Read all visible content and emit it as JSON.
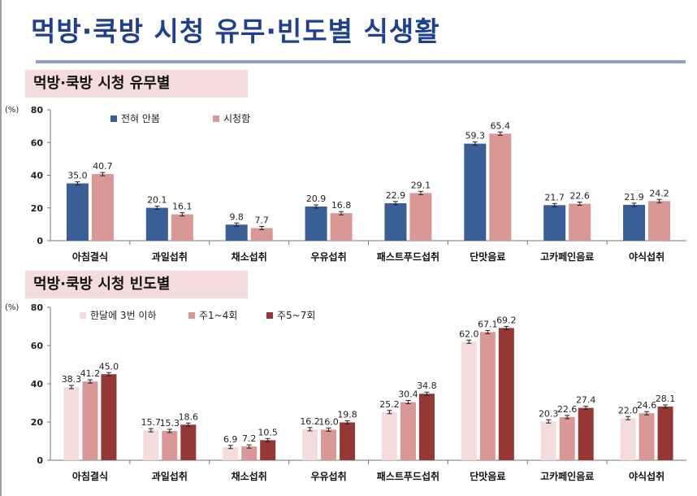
{
  "page": {
    "title": "먹방·쿡방 시청 유무·빈도별 식생활",
    "sections": [
      "먹방·쿡방 시청 유무별",
      "먹방·쿡방 시청 빈도별"
    ]
  },
  "chart_data": [
    {
      "type": "bar",
      "title": "먹방·쿡방 시청 유무별",
      "unit": "(%)",
      "ylim": [
        0,
        80
      ],
      "yticks": [
        0,
        20,
        40,
        60,
        80
      ],
      "grid": false,
      "legend": "top-left",
      "categories": [
        "아침결식",
        "과일섭취",
        "채소섭취",
        "우유섭취",
        "패스트푸드섭취",
        "단맛음료",
        "고카페인음료",
        "야식섭취"
      ],
      "series": [
        {
          "name": "전혀 안봄",
          "color": "#3a5f96",
          "values": [
            35.0,
            20.1,
            9.8,
            20.9,
            22.9,
            59.3,
            21.7,
            21.9
          ]
        },
        {
          "name": "시청함",
          "color": "#d99795",
          "values": [
            40.7,
            16.1,
            7.7,
            16.8,
            29.1,
            65.4,
            22.6,
            24.2
          ]
        }
      ],
      "error_bars": true
    },
    {
      "type": "bar",
      "title": "먹방·쿡방 시청 빈도별",
      "unit": "(%)",
      "ylim": [
        0,
        80
      ],
      "yticks": [
        0,
        20,
        40,
        60,
        80
      ],
      "grid": false,
      "legend": "top-left",
      "categories": [
        "아침결식",
        "과일섭취",
        "채소섭취",
        "우유섭취",
        "패스트푸드섭취",
        "단맛음료",
        "고카페인음료",
        "야식섭취"
      ],
      "series": [
        {
          "name": "한달에 3번 이하",
          "color": "#f3dcdb",
          "values": [
            38.3,
            15.7,
            6.9,
            16.2,
            25.2,
            62.0,
            20.3,
            22.0
          ]
        },
        {
          "name": "주1~4회",
          "color": "#d99795",
          "values": [
            41.2,
            15.3,
            7.2,
            16.0,
            30.4,
            67.1,
            22.6,
            24.6
          ]
        },
        {
          "name": "주5~7회",
          "color": "#953735",
          "values": [
            45.0,
            18.6,
            10.5,
            19.8,
            34.8,
            69.2,
            27.4,
            28.1
          ]
        }
      ],
      "error_bars": true
    }
  ]
}
